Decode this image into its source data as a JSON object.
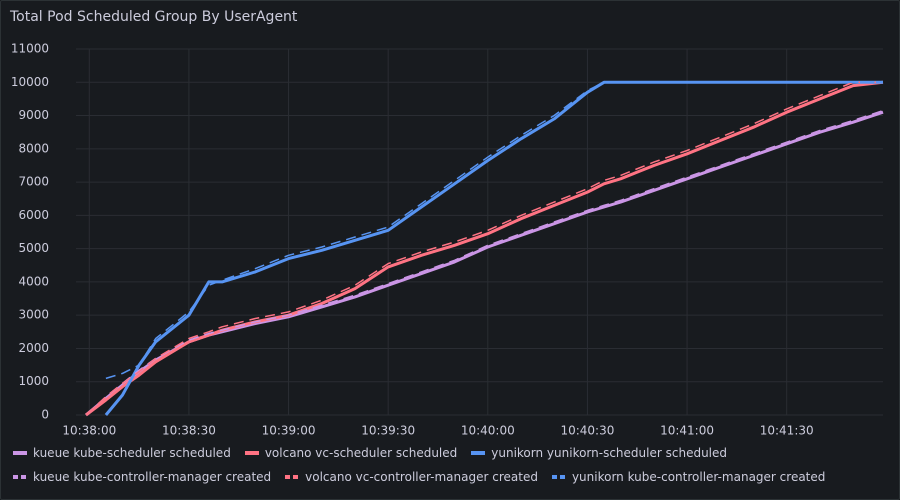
{
  "chart_data": {
    "type": "line",
    "title": "Total Pod Scheduled Group By UserAgent",
    "x": [
      "10:37:59",
      "10:38:05",
      "10:38:10",
      "10:38:15",
      "10:38:20",
      "10:38:30",
      "10:38:36",
      "10:38:40",
      "10:38:50",
      "10:39:00",
      "10:39:10",
      "10:39:20",
      "10:39:30",
      "10:39:40",
      "10:39:50",
      "10:40:00",
      "10:40:10",
      "10:40:20",
      "10:40:30",
      "10:40:35",
      "10:40:40",
      "10:40:50",
      "10:41:00",
      "10:41:10",
      "10:41:20",
      "10:41:30",
      "10:41:40",
      "10:41:50",
      "10:41:59"
    ],
    "xlim": [
      "10:37:56",
      "10:41:59"
    ],
    "xticks": [
      "10:38:00",
      "10:38:30",
      "10:39:00",
      "10:39:30",
      "10:40:00",
      "10:40:30",
      "10:41:00",
      "10:41:30"
    ],
    "ylim": [
      0,
      11000
    ],
    "yticks": [
      0,
      1000,
      2000,
      3000,
      4000,
      5000,
      6000,
      7000,
      8000,
      9000,
      10000,
      11000
    ],
    "grid": true,
    "legend": "bottom",
    "series": [
      {
        "name": "kueue kube-scheduler scheduled",
        "color": "#ca95e5",
        "line_style": "solid",
        "values": [
          0,
          500,
          900,
          1300,
          1650,
          2200,
          2400,
          2500,
          2750,
          2950,
          3250,
          3550,
          3900,
          4250,
          4600,
          5050,
          5400,
          5750,
          6100,
          6250,
          6400,
          6750,
          7100,
          7450,
          7800,
          8150,
          8500,
          8800,
          9100
        ]
      },
      {
        "name": "volcano vc-scheduler scheduled",
        "color": "#ff7383",
        "line_style": "solid",
        "values": [
          0,
          450,
          850,
          1200,
          1600,
          2200,
          2400,
          2550,
          2800,
          3000,
          3350,
          3800,
          4450,
          4800,
          5100,
          5450,
          5900,
          6300,
          6700,
          6950,
          7100,
          7500,
          7850,
          8250,
          8650,
          9100,
          9500,
          9900,
          10000
        ]
      },
      {
        "name": "yunikorn yunikorn-scheduler scheduled",
        "color": "#5794f2",
        "line_style": "solid",
        "values": [
          null,
          0,
          600,
          1500,
          2200,
          3000,
          4000,
          4000,
          4300,
          4700,
          4950,
          5250,
          5550,
          6250,
          6950,
          7650,
          8300,
          8900,
          9700,
          10000,
          10000,
          10000,
          10000,
          10000,
          10000,
          10000,
          10000,
          10000,
          10000
        ]
      },
      {
        "name": "kueue kube-controller-manager created",
        "color": "#ca95e5",
        "line_style": "dashed",
        "values": [
          0,
          550,
          950,
          1350,
          1700,
          2250,
          2450,
          2550,
          2800,
          3000,
          3300,
          3600,
          3950,
          4300,
          4650,
          5100,
          5450,
          5800,
          6150,
          6300,
          6450,
          6800,
          7150,
          7500,
          7850,
          8200,
          8550,
          8850,
          9150
        ]
      },
      {
        "name": "volcano vc-controller-manager created",
        "color": "#ff7383",
        "line_style": "dashed",
        "values": [
          0,
          550,
          950,
          1300,
          1700,
          2300,
          2500,
          2650,
          2900,
          3100,
          3450,
          3900,
          4550,
          4900,
          5200,
          5550,
          6000,
          6400,
          6800,
          7050,
          7200,
          7600,
          7950,
          8350,
          8750,
          9200,
          9600,
          10000,
          10000
        ]
      },
      {
        "name": "yunikorn kube-controller-manager created",
        "color": "#5794f2",
        "line_style": "dashed",
        "values": [
          null,
          1100,
          1250,
          1500,
          2300,
          3100,
          3900,
          4050,
          4400,
          4800,
          5050,
          5350,
          5650,
          6350,
          7050,
          7750,
          8400,
          9000,
          9750,
          10000,
          10000,
          10000,
          10000,
          10000,
          10000,
          10000,
          10000,
          10000,
          10000
        ]
      }
    ]
  }
}
